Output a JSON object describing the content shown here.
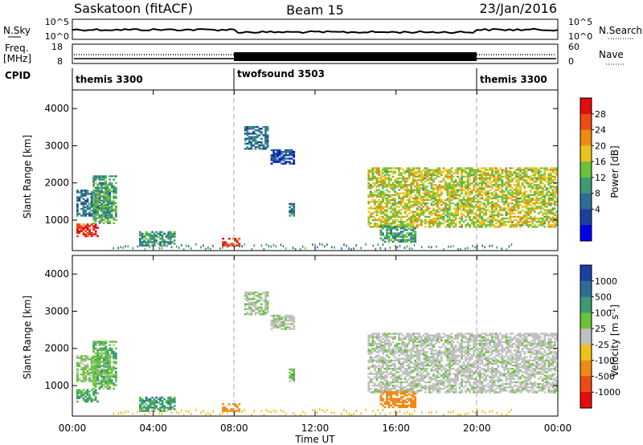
{
  "header": {
    "station": "Saskatoon (fitACF)",
    "beam": "Beam 15",
    "date": "23/Jan/2016"
  },
  "noise_panel": {
    "left_label": "N.Sky",
    "right_label": "N.Search",
    "left_ticks": [
      "10^5",
      "10^0"
    ],
    "right_ticks": [
      "10^5",
      "10^0"
    ]
  },
  "freq_panel": {
    "left_label_1": "Freq.",
    "left_label_2": "[MHz]",
    "right_label": "Nave",
    "left_ticks": [
      "18",
      "8"
    ],
    "right_ticks": [
      "60",
      "0"
    ]
  },
  "cpid": {
    "label": "CPID",
    "segments": [
      {
        "name": "themis 3300",
        "start_hour": 0,
        "end_hour": 8
      },
      {
        "name": "twofsound 3503",
        "start_hour": 8,
        "end_hour": 20
      },
      {
        "name": "themis 3300",
        "start_hour": 20,
        "end_hour": 24
      }
    ]
  },
  "power_panel": {
    "ylabel": "Slant Range [km]",
    "yticks": [
      "1000",
      "2000",
      "3000",
      "4000"
    ],
    "colorbar_label": "Power [dB]",
    "colorbar_ticks": [
      "4",
      "8",
      "12",
      "16",
      "20",
      "24",
      "28"
    ],
    "colors": [
      "#0000ee",
      "#1a3f9e",
      "#2e6e96",
      "#3d9a73",
      "#69c23a",
      "#eec21c",
      "#f08a14",
      "#ee4a12",
      "#e50c0c"
    ]
  },
  "velocity_panel": {
    "ylabel": "Slant Range [km]",
    "yticks": [
      "1000",
      "2000",
      "3000",
      "4000"
    ],
    "colorbar_label": "Velocity [m s",
    "colorbar_label_sup": "-1",
    "colorbar_label_end": "]",
    "colorbar_ticks": [
      "1000",
      "500",
      "100",
      "25",
      "-25",
      "-100",
      "-500",
      "-1000"
    ],
    "colors": [
      "#1f3ea3",
      "#2e6e96",
      "#3d9a73",
      "#69c23a",
      "#c0c0c0",
      "#eec21c",
      "#f08a14",
      "#ee4a12",
      "#e50c0c"
    ]
  },
  "xaxis": {
    "label": "Time UT",
    "ticks": [
      "00:00",
      "04:00",
      "08:00",
      "12:00",
      "16:00",
      "20:00",
      "00:00"
    ]
  },
  "chart_data": {
    "type": "heatmap",
    "title": "Saskatoon (fitACF) Beam 15 23/Jan/2016",
    "xlabel": "Time UT",
    "ylabel": "Slant Range [km]",
    "xlim": [
      0,
      24
    ],
    "ylim": [
      180,
      4500
    ],
    "power_range_db": [
      0,
      30
    ],
    "velocity_range_ms": [
      -1000,
      1000
    ],
    "echo_regions": [
      {
        "t0": 0.2,
        "t1": 1.3,
        "r0": 550,
        "r1": 900,
        "power": 27,
        "velocity": 70
      },
      {
        "t0": 0.2,
        "t1": 1.9,
        "r0": 1100,
        "r1": 1800,
        "power": 9,
        "velocity": 30
      },
      {
        "t0": 1.0,
        "t1": 2.2,
        "r0": 900,
        "r1": 2200,
        "power": 13,
        "velocity": 50
      },
      {
        "t0": 3.3,
        "t1": 5.0,
        "r0": 300,
        "r1": 700,
        "power": 11,
        "velocity": 80
      },
      {
        "t0": 7.4,
        "t1": 8.2,
        "r0": 300,
        "r1": 500,
        "power": 25,
        "velocity": -150
      },
      {
        "t0": 8.5,
        "t1": 9.6,
        "r0": 2900,
        "r1": 3500,
        "power": 8,
        "velocity": 10
      },
      {
        "t0": 9.8,
        "t1": 10.9,
        "r0": 2500,
        "r1": 2900,
        "power": 6,
        "velocity": 10
      },
      {
        "t0": 10.7,
        "t1": 10.9,
        "r0": 1100,
        "r1": 1450,
        "power": 10,
        "velocity": 40
      },
      {
        "t0": 14.6,
        "t1": 24.0,
        "r0": 800,
        "r1": 2400,
        "power": 17,
        "velocity": 5
      },
      {
        "t0": 15.2,
        "t1": 17.0,
        "r0": 400,
        "r1": 850,
        "power": 12,
        "velocity": -250
      }
    ],
    "cpid_changes_hour": [
      8,
      20
    ]
  }
}
